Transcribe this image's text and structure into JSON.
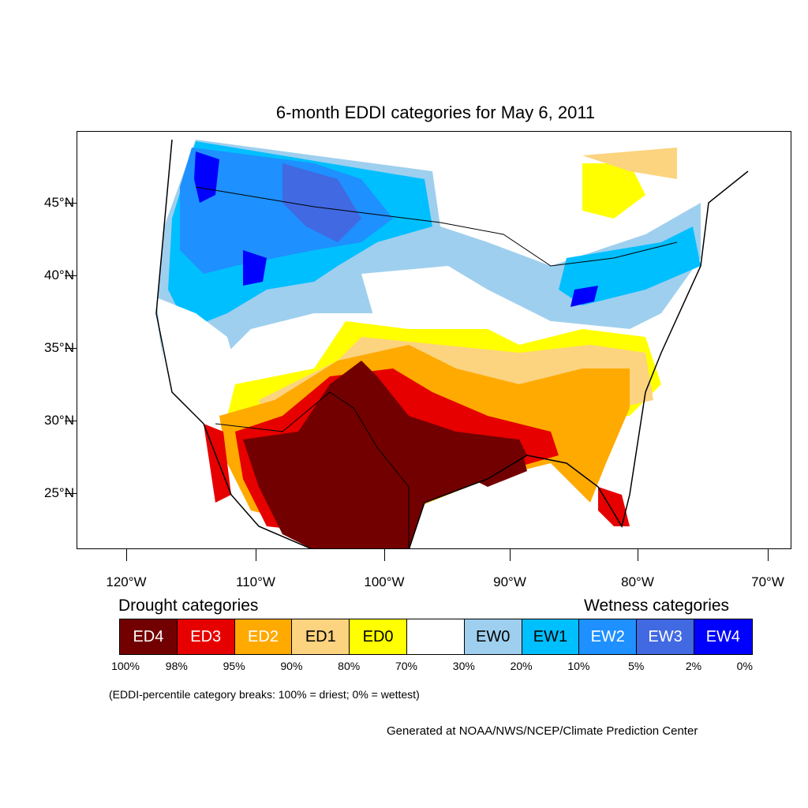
{
  "title": "6-month EDDI categories for May 6, 2011",
  "axes": {
    "lat_labels": [
      "45°N",
      "40°N",
      "35°N",
      "30°N",
      "25°N"
    ],
    "lon_labels": [
      "120°W",
      "110°W",
      "100°W",
      "90°W",
      "80°W",
      "70°W"
    ]
  },
  "legend": {
    "drought_heading": "Drought categories",
    "wetness_heading": "Wetness categories",
    "categories": [
      {
        "label": "ED4",
        "color": "#730000",
        "text_color": "#ffffff"
      },
      {
        "label": "ED3",
        "color": "#e60000",
        "text_color": "#ffffff"
      },
      {
        "label": "ED2",
        "color": "#ffaa00",
        "text_color": "#ffffff"
      },
      {
        "label": "ED1",
        "color": "#fcd37f",
        "text_color": "#000000"
      },
      {
        "label": "ED0",
        "color": "#ffff00",
        "text_color": "#000000"
      },
      {
        "label": "",
        "color": "#ffffff",
        "text_color": "#000000"
      },
      {
        "label": "EW0",
        "color": "#9fcfee",
        "text_color": "#000000"
      },
      {
        "label": "EW1",
        "color": "#00bfff",
        "text_color": "#000000"
      },
      {
        "label": "EW2",
        "color": "#1e90ff",
        "text_color": "#ffffff"
      },
      {
        "label": "EW3",
        "color": "#4169e1",
        "text_color": "#ffffff"
      },
      {
        "label": "EW4",
        "color": "#0000ff",
        "text_color": "#ffffff"
      }
    ],
    "breaks": [
      "100%",
      "98%",
      "95%",
      "90%",
      "80%",
      "70%",
      "30%",
      "20%",
      "10%",
      "5%",
      "2%",
      "0%"
    ]
  },
  "note": "(EDDI-percentile category breaks: 100% = driest; 0% = wettest)",
  "credit": "Generated at NOAA/NWS/NCEP/Climate Prediction Center"
}
